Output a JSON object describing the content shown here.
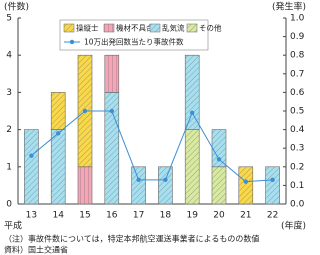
{
  "chart_data": {
    "type": "bar",
    "y_axis_label": "(件数)",
    "y2_axis_label": "(発生率)",
    "x_axis_prefix": "平成",
    "x_axis_label": "(年度)",
    "categories": [
      "13",
      "14",
      "15",
      "16",
      "17",
      "18",
      "19",
      "20",
      "21",
      "22"
    ],
    "series": [
      {
        "name": "操縦士",
        "type": "bar",
        "color": "#f9d84a",
        "values": [
          0,
          1,
          3,
          0,
          0,
          0,
          0,
          0,
          1,
          0
        ]
      },
      {
        "name": "機材不具合",
        "type": "bar",
        "color": "#f4a6b8",
        "values": [
          0,
          0,
          1,
          1,
          0,
          0,
          0,
          0,
          0,
          0
        ]
      },
      {
        "name": "乱気流",
        "type": "bar",
        "color": "#a6e0f0",
        "values": [
          2,
          2,
          0,
          3,
          1,
          1,
          2,
          1,
          0,
          1
        ]
      },
      {
        "name": "その他",
        "type": "bar",
        "color": "#d8eaa0",
        "values": [
          0,
          0,
          0,
          0,
          0,
          0,
          2,
          1,
          0,
          0
        ]
      },
      {
        "name": "10万出発回数当たり事故件数",
        "type": "line",
        "axis": "y2",
        "color": "#3b8fd4",
        "values": [
          0.26,
          0.38,
          0.5,
          0.5,
          0.13,
          0.13,
          0.49,
          0.24,
          0.12,
          0.13
        ]
      }
    ],
    "ylim": [
      0,
      5
    ],
    "yticks": [
      0,
      1,
      2,
      3,
      4,
      5
    ],
    "y2lim": [
      0,
      1
    ],
    "y2ticks": [
      {
        "value": 0,
        "label": "0.0"
      },
      0.1,
      0.2,
      0.3,
      0.4,
      0.5,
      0.6,
      0.7,
      0.8,
      0.9,
      {
        "value": 1,
        "label": "1.0"
      }
    ],
    "notes": [
      "（注）事故件数については，特定本邦航空運送事業者によるものの数値",
      "資料）国土交通省"
    ]
  }
}
